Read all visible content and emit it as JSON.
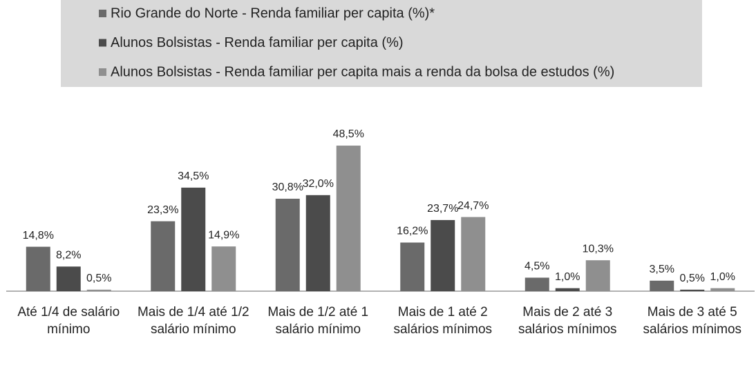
{
  "chart_data": {
    "type": "bar",
    "categories": [
      "Até 1/4 de salário mínimo",
      "Mais de 1/4 até 1/2 salário mínimo",
      "Mais de 1/2 até 1 salário mínimo",
      "Mais de 1 até 2 salários mínimos",
      "Mais de 2 até 3 salários mínimos",
      "Mais de 3 até 5 salários mínimos"
    ],
    "series": [
      {
        "name": "Rio Grande do Norte - Renda familiar per capita (%)*",
        "color": "#6a6a6a",
        "values": [
          14.8,
          23.3,
          30.8,
          16.2,
          4.5,
          3.5
        ],
        "value_labels": [
          "14,8%",
          "23,3%",
          "30,8%",
          "16,2%",
          "4,5%",
          "3,5%"
        ]
      },
      {
        "name": "Alunos Bolsistas - Renda familiar per capita (%)",
        "color": "#4b4b4b",
        "values": [
          8.2,
          34.5,
          32.0,
          23.7,
          1.0,
          0.5
        ],
        "value_labels": [
          "8,2%",
          "34,5%",
          "32,0%",
          "23,7%",
          "1,0%",
          "0,5%"
        ]
      },
      {
        "name": "Alunos Bolsistas - Renda familiar per capita mais a renda da bolsa de estudos (%)",
        "color": "#8f8f8f",
        "values": [
          0.5,
          14.9,
          48.5,
          24.7,
          10.3,
          1.0
        ],
        "value_labels": [
          "0,5%",
          "14,9%",
          "48,5%",
          "24,7%",
          "10,3%",
          "1,0%"
        ]
      }
    ],
    "ylim": [
      0,
      50
    ]
  }
}
